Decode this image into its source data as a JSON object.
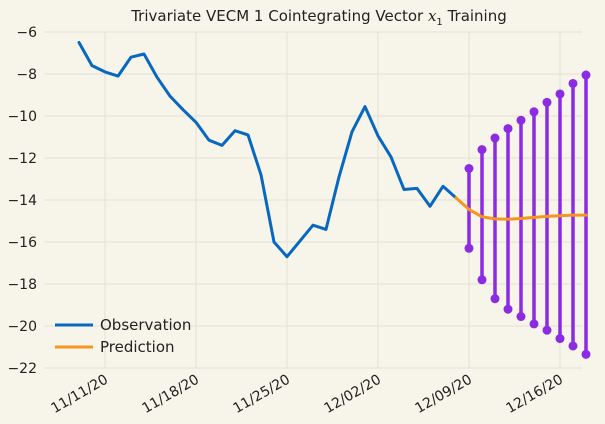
{
  "chart_data": {
    "type": "line",
    "title": "Trivariate VECM 1 Cointegrating Vector $x_1$ Training",
    "title_prefix": "Trivariate VECM 1 Cointegrating Vector ",
    "title_var": "x",
    "title_sub": "1",
    "title_suffix": " Training",
    "xlabel": "",
    "ylabel": "",
    "ylim": [
      -22,
      -6
    ],
    "y_ticks": [
      -22,
      -20,
      -18,
      -16,
      -14,
      -12,
      -10,
      -8,
      -6
    ],
    "y_tick_labels": [
      "−22",
      "−20",
      "−18",
      "−16",
      "−14",
      "−12",
      "−10",
      "−8",
      "−6"
    ],
    "x_ticks": [
      "2020-11-11",
      "2020-11-18",
      "2020-11-25",
      "2020-12-02",
      "2020-12-09",
      "2020-12-16"
    ],
    "x_tick_labels": [
      "11/11/20",
      "11/18/20",
      "11/25/20",
      "12/02/20",
      "12/09/20",
      "12/16/20"
    ],
    "grid": true,
    "legend_position": "lower-left",
    "colors": {
      "background": "#f7f5ea",
      "grid": "#e3e1d6",
      "observation": "#0868c0",
      "prediction": "#f5961e",
      "interval": "#8b2be2"
    },
    "series": [
      {
        "name": "Observation",
        "x": [
          "2020-11-09",
          "2020-11-10",
          "2020-11-11",
          "2020-11-12",
          "2020-11-13",
          "2020-11-14",
          "2020-11-15",
          "2020-11-16",
          "2020-11-17",
          "2020-11-18",
          "2020-11-19",
          "2020-11-20",
          "2020-11-21",
          "2020-11-22",
          "2020-11-23",
          "2020-11-24",
          "2020-11-25",
          "2020-11-26",
          "2020-11-27",
          "2020-11-28",
          "2020-11-29",
          "2020-11-30",
          "2020-12-01",
          "2020-12-02",
          "2020-12-03",
          "2020-12-04",
          "2020-12-05",
          "2020-12-06",
          "2020-12-07",
          "2020-12-08"
        ],
        "y": [
          -6.5,
          -7.6,
          -7.9,
          -8.1,
          -7.2,
          -7.05,
          -8.15,
          -9.05,
          -9.7,
          -10.3,
          -11.15,
          -11.4,
          -10.7,
          -10.9,
          -12.8,
          -16.0,
          -16.7,
          -15.95,
          -15.2,
          -15.4,
          -12.9,
          -10.75,
          -9.55,
          -10.95,
          -11.95,
          -13.5,
          -13.45,
          -14.3,
          -13.35,
          -13.9
        ]
      },
      {
        "name": "Prediction",
        "x": [
          "2020-12-08",
          "2020-12-09",
          "2020-12-10",
          "2020-12-11",
          "2020-12-12",
          "2020-12-13",
          "2020-12-14",
          "2020-12-15",
          "2020-12-16",
          "2020-12-17",
          "2020-12-18"
        ],
        "y": [
          -13.9,
          -14.45,
          -14.8,
          -14.9,
          -14.92,
          -14.88,
          -14.83,
          -14.78,
          -14.75,
          -14.72,
          -14.72
        ]
      }
    ],
    "intervals": {
      "x": [
        "2020-12-09",
        "2020-12-10",
        "2020-12-11",
        "2020-12-12",
        "2020-12-13",
        "2020-12-14",
        "2020-12-15",
        "2020-12-16",
        "2020-12-17",
        "2020-12-18"
      ],
      "upper": [
        -12.5,
        -11.6,
        -11.05,
        -10.6,
        -10.2,
        -9.8,
        -9.35,
        -8.95,
        -8.45,
        -8.05
      ],
      "lower": [
        -16.3,
        -17.8,
        -18.7,
        -19.2,
        -19.55,
        -19.9,
        -20.2,
        -20.6,
        -20.95,
        -21.35
      ]
    }
  }
}
